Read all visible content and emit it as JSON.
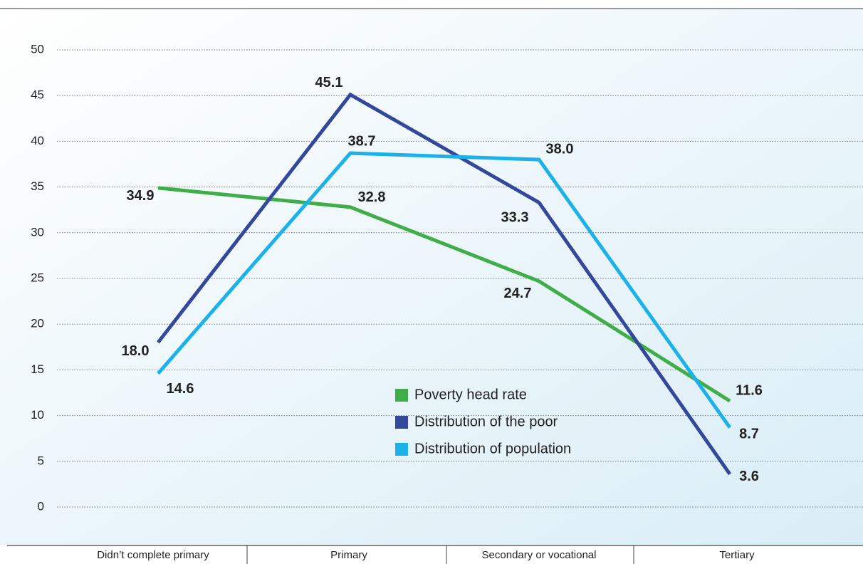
{
  "chart_data": {
    "type": "line",
    "categories": [
      "Didn’t complete primary",
      "Primary",
      "Secondary or vocational",
      "Tertiary"
    ],
    "series": [
      {
        "name": "Poverty head rate",
        "color": "#3fae49",
        "values": [
          34.9,
          32.8,
          24.7,
          11.6
        ],
        "value_labels": [
          "34.9",
          "32.8",
          "24.7",
          "11.6"
        ]
      },
      {
        "name": "Distribution of the poor",
        "color": "#34489b",
        "values": [
          18.0,
          45.1,
          33.3,
          3.6
        ],
        "value_labels": [
          "18.0",
          "45.1",
          "33.3",
          "3.6"
        ]
      },
      {
        "name": "Distribution of population",
        "color": "#1ab2e8",
        "values": [
          14.6,
          38.7,
          38.0,
          8.7
        ],
        "value_labels": [
          "14.6",
          "38.7",
          "38.0",
          "8.7"
        ]
      }
    ],
    "ylim": [
      0,
      50
    ],
    "yticks": [
      0,
      5,
      10,
      15,
      20,
      25,
      30,
      35,
      40,
      45,
      50
    ],
    "grid": true
  }
}
